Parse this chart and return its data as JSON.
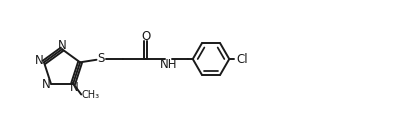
{
  "bg_color": "#ffffff",
  "line_color": "#1a1a1a",
  "line_width": 1.4,
  "font_size": 8.5,
  "figsize": [
    3.94,
    1.4
  ],
  "dpi": 100,
  "xlim": [
    0,
    10.5
  ],
  "ylim": [
    0,
    3.8
  ]
}
